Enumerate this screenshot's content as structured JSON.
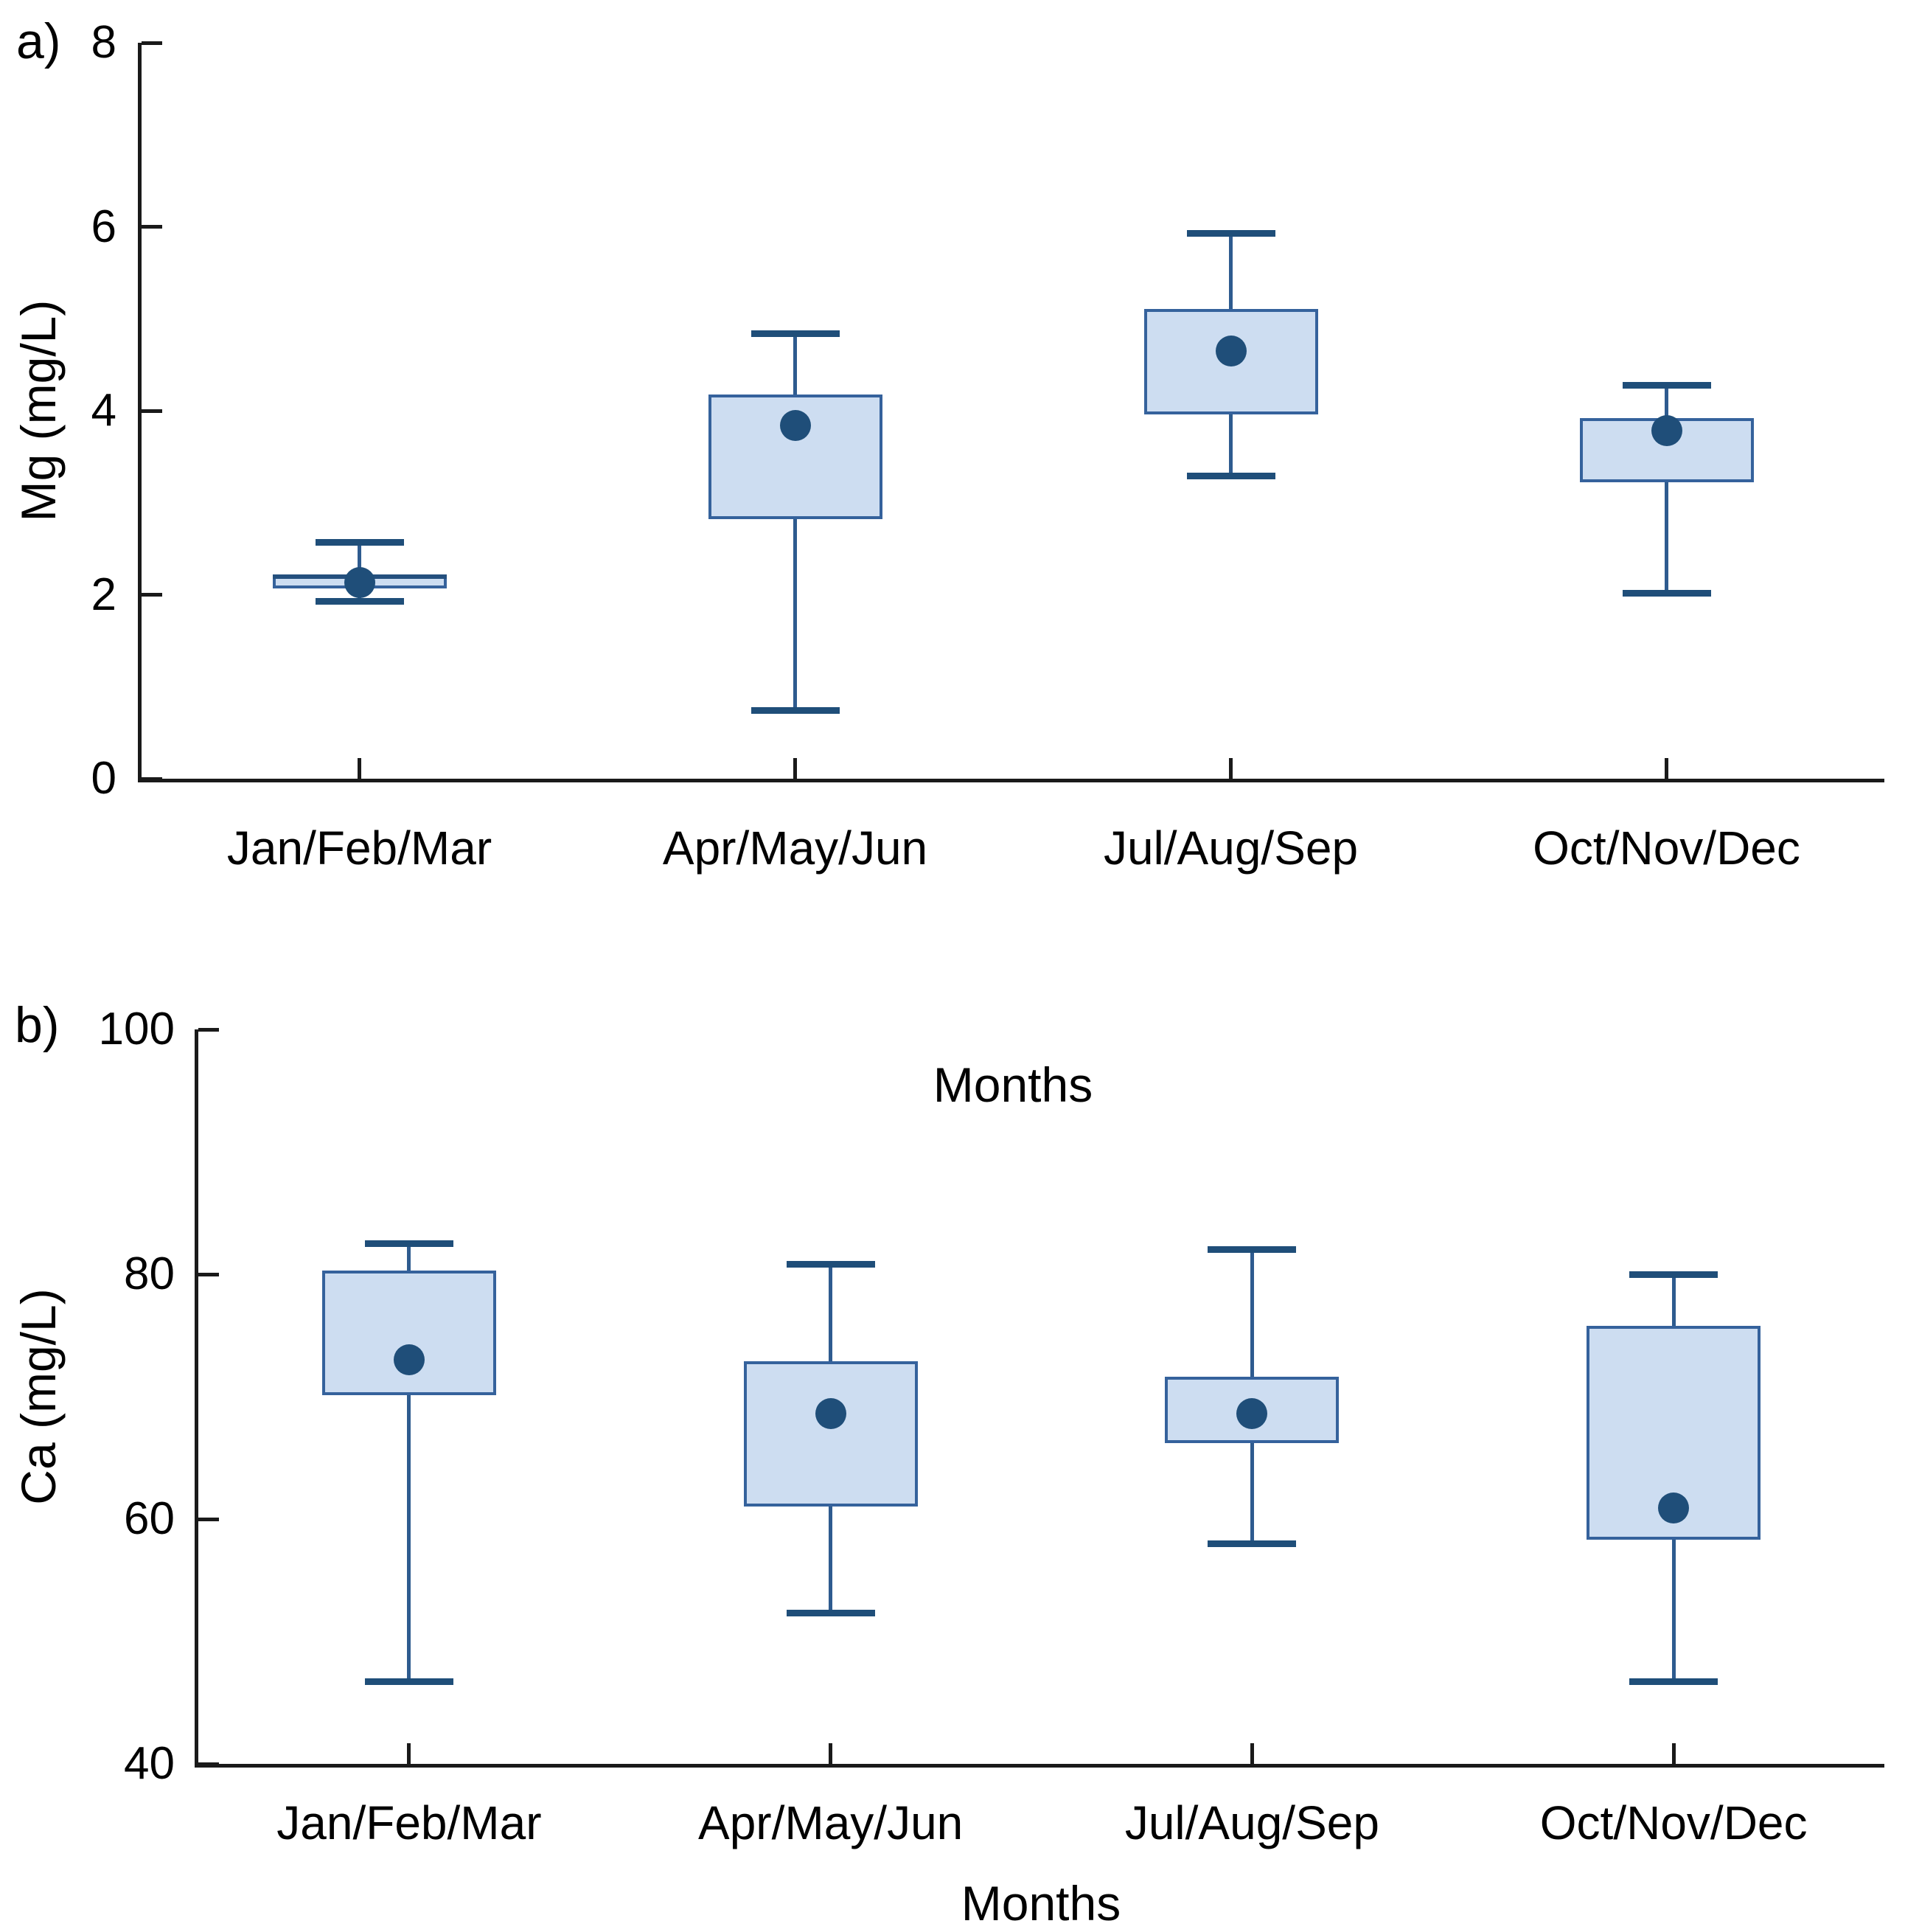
{
  "figure_title": "",
  "page": {
    "background": "#ffffff"
  },
  "colors": {
    "box_fill": "#cdddf1",
    "box_border": "#35629c",
    "whisker_line": "#2e5b8f",
    "whisker_cap": "#1f4e79",
    "median": "#24507e",
    "mean_dot": "#1f4e79",
    "axis": "#1a1a1a",
    "text": "#000000"
  },
  "chart_data": [
    {
      "id": "mg",
      "type": "box",
      "panel_label": "a)",
      "ylabel": "Mg (mg/L)",
      "xlabel": "Months",
      "ylim": [
        0,
        8
      ],
      "yticks": [
        0,
        2,
        4,
        6,
        8
      ],
      "grid": false,
      "legend": null,
      "categories": [
        "Jan/Feb/Mar",
        "Apr/May/Jun",
        "Jul/Aug/Sep",
        "Oct/Nov/Dec"
      ],
      "boxes": [
        {
          "category": "Jan/Feb/Mar",
          "whisker_low": 1.93,
          "q1": 2.07,
          "median": 2.2,
          "q3": 2.22,
          "whisker_high": 2.57,
          "mean": 2.13
        },
        {
          "category": "Apr/May/Jun",
          "whisker_low": 0.74,
          "q1": 2.82,
          "median": null,
          "q3": 4.18,
          "whisker_high": 4.84,
          "mean": 3.84
        },
        {
          "category": "Jul/Aug/Sep",
          "whisker_low": 3.29,
          "q1": 3.96,
          "median": null,
          "q3": 5.11,
          "whisker_high": 5.93,
          "mean": 4.65
        },
        {
          "category": "Oct/Nov/Dec",
          "whisker_low": 2.02,
          "q1": 3.22,
          "median": null,
          "q3": 3.92,
          "whisker_high": 4.28,
          "mean": 3.78
        }
      ]
    },
    {
      "id": "ca",
      "type": "box",
      "panel_label": "b)",
      "ylabel": "Ca (mg/L)",
      "xlabel": "Months",
      "ylim": [
        40,
        100
      ],
      "yticks": [
        40,
        60,
        80,
        100
      ],
      "grid": false,
      "legend": null,
      "categories": [
        "Jan/Feb/Mar",
        "Apr/May/Jun",
        "Jul/Aug/Sep",
        "Oct/Nov/Dec"
      ],
      "boxes": [
        {
          "category": "Jan/Feb/Mar",
          "whisker_low": 46.7,
          "q1": 70.1,
          "median": null,
          "q3": 80.3,
          "whisker_high": 82.5,
          "mean": 73.0
        },
        {
          "category": "Apr/May/Jun",
          "whisker_low": 52.3,
          "q1": 61.0,
          "median": null,
          "q3": 72.9,
          "whisker_high": 80.8,
          "mean": 68.6
        },
        {
          "category": "Jul/Aug/Sep",
          "whisker_low": 58.0,
          "q1": 66.2,
          "median": null,
          "q3": 71.6,
          "whisker_high": 82.0,
          "mean": 68.6
        },
        {
          "category": "Oct/Nov/Dec",
          "whisker_low": 46.7,
          "q1": 58.3,
          "median": null,
          "q3": 75.8,
          "whisker_high": 80.0,
          "mean": 60.9
        }
      ]
    }
  ]
}
